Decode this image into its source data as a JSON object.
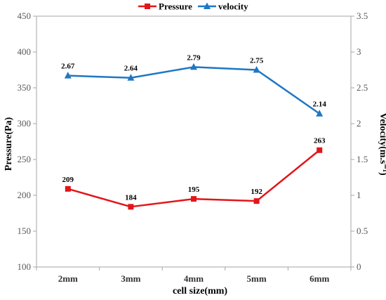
{
  "chart_data": {
    "type": "line",
    "categories": [
      "2mm",
      "3mm",
      "4mm",
      "5mm",
      "6mm"
    ],
    "xlabel": "cell size(mm)",
    "ylabel_left": "Pressure(Pa)",
    "ylabel_right": "Velocity(m.s⁻¹)",
    "ylim_left": [
      100,
      450
    ],
    "ylim_right": [
      0,
      3.5
    ],
    "yticks_left": [
      "100",
      "150",
      "200",
      "250",
      "300",
      "350",
      "400",
      "450"
    ],
    "yticks_right": [
      "0",
      "0.5",
      "1",
      "1.5",
      "2",
      "2.5",
      "3",
      "3.5"
    ],
    "grid": false,
    "legend_position": "top",
    "series": [
      {
        "name": "Pressure",
        "axis": "left",
        "marker": "square",
        "color": "#e3151a",
        "values": [
          209,
          184,
          195,
          192,
          263
        ],
        "labels": [
          "209",
          "184",
          "195",
          "192",
          "263"
        ]
      },
      {
        "name": "velocity",
        "axis": "right",
        "marker": "triangle",
        "color": "#1f77c4",
        "values": [
          2.67,
          2.64,
          2.79,
          2.75,
          2.14
        ],
        "labels": [
          "2.67",
          "2.64",
          "2.79",
          "2.75",
          "2.14"
        ]
      }
    ]
  }
}
